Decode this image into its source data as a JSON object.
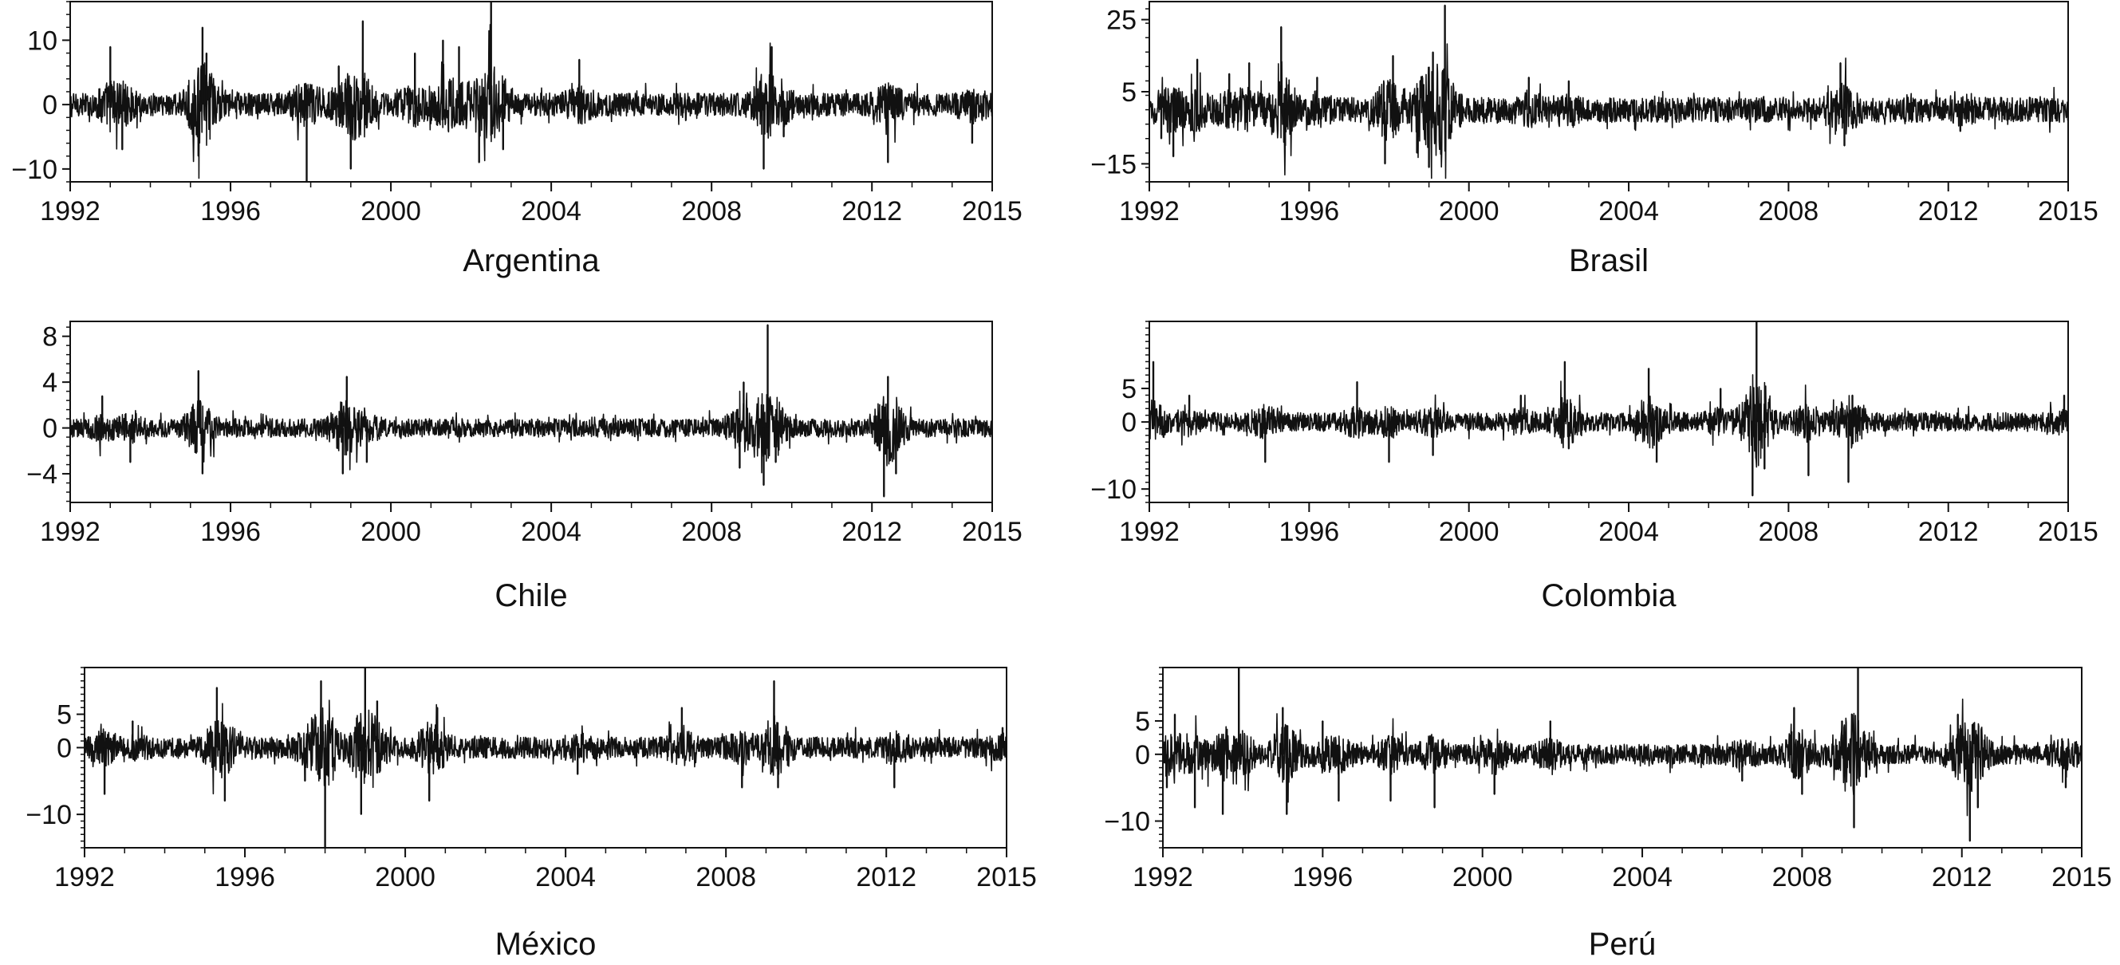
{
  "chart_data": [
    {
      "type": "line",
      "title": "Argentina",
      "xlim": [
        1992,
        2015
      ],
      "xticks": [
        1992,
        1996,
        2000,
        2004,
        2008,
        2012,
        2015
      ],
      "ylim": [
        -12,
        16
      ],
      "yticks": [
        10,
        0,
        -10
      ],
      "color": "#111111",
      "spikes": [
        [
          1993.0,
          9
        ],
        [
          1993.3,
          -7
        ],
        [
          1995.2,
          -8
        ],
        [
          1995.3,
          12
        ],
        [
          1995.4,
          8
        ],
        [
          1997.9,
          -12
        ],
        [
          1998.7,
          6
        ],
        [
          1999.0,
          -10
        ],
        [
          1999.3,
          13
        ],
        [
          2000.6,
          8
        ],
        [
          2001.3,
          10
        ],
        [
          2001.7,
          9
        ],
        [
          2002.2,
          -9
        ],
        [
          2002.5,
          16
        ],
        [
          2002.8,
          -7
        ],
        [
          2004.7,
          7
        ],
        [
          2009.3,
          -10
        ],
        [
          2009.5,
          9
        ],
        [
          2009.8,
          -5
        ],
        [
          2012.4,
          -9
        ],
        [
          2014.5,
          -6
        ]
      ],
      "noise": 1.8
    },
    {
      "type": "line",
      "title": "Brasil",
      "xlim": [
        1992,
        2015
      ],
      "xticks": [
        1992,
        1996,
        2000,
        2004,
        2008,
        2012,
        2015
      ],
      "ylim": [
        -20,
        30
      ],
      "yticks": [
        25,
        5,
        -15
      ],
      "color": "#111111",
      "spikes": [
        [
          1992.3,
          -8
        ],
        [
          1992.6,
          -13
        ],
        [
          1993.2,
          14
        ],
        [
          1994.0,
          10
        ],
        [
          1994.5,
          13
        ],
        [
          1995.3,
          23
        ],
        [
          1995.4,
          -10
        ],
        [
          1996.2,
          9
        ],
        [
          1997.9,
          -15
        ],
        [
          1998.1,
          15
        ],
        [
          1998.7,
          -12
        ],
        [
          1999.0,
          -16
        ],
        [
          1999.1,
          16
        ],
        [
          1999.4,
          29
        ],
        [
          1999.5,
          -8
        ],
        [
          2001.5,
          9
        ],
        [
          2002.5,
          8
        ],
        [
          2009.3,
          13
        ],
        [
          2009.4,
          -10
        ],
        [
          2012.3,
          -6
        ]
      ],
      "noise": 3.5
    },
    {
      "type": "line",
      "title": "Chile",
      "xlim": [
        1992,
        2015
      ],
      "xticks": [
        1992,
        1996,
        2000,
        2004,
        2008,
        2012,
        2015
      ],
      "ylim": [
        -6.5,
        9.3
      ],
      "yticks": [
        8,
        4,
        0,
        -4
      ],
      "color": "#111111",
      "spikes": [
        [
          1992.8,
          2.8
        ],
        [
          1993.5,
          -3
        ],
        [
          1995.2,
          5
        ],
        [
          1995.3,
          -4
        ],
        [
          1998.8,
          -4
        ],
        [
          1998.9,
          4.5
        ],
        [
          1999.4,
          -3
        ],
        [
          2008.7,
          -3.5
        ],
        [
          2008.8,
          4
        ],
        [
          2009.3,
          -5
        ],
        [
          2009.4,
          9
        ],
        [
          2009.6,
          -3
        ],
        [
          2012.3,
          -6
        ],
        [
          2012.4,
          4.5
        ],
        [
          2012.6,
          -4
        ]
      ],
      "noise": 0.8
    },
    {
      "type": "line",
      "title": "Colombia",
      "xlim": [
        1992,
        2015
      ],
      "xticks": [
        1992,
        1996,
        2000,
        2004,
        2008,
        2012,
        2015
      ],
      "ylim": [
        -12,
        15
      ],
      "yticks": [
        5,
        0,
        -10
      ],
      "color": "#111111",
      "spikes": [
        [
          1992.1,
          9
        ],
        [
          1993.0,
          4
        ],
        [
          1994.9,
          -6
        ],
        [
          1997.2,
          6
        ],
        [
          1998.0,
          -6
        ],
        [
          1999.1,
          -5
        ],
        [
          2001.3,
          4
        ],
        [
          2002.4,
          9
        ],
        [
          2002.5,
          -4
        ],
        [
          2004.5,
          8
        ],
        [
          2004.7,
          -6
        ],
        [
          2006.3,
          5
        ],
        [
          2007.1,
          -11
        ],
        [
          2007.2,
          15
        ],
        [
          2007.4,
          -7
        ],
        [
          2008.5,
          -8
        ],
        [
          2009.5,
          -9
        ],
        [
          2009.6,
          4
        ],
        [
          2014.9,
          4
        ]
      ],
      "noise": 1.4
    },
    {
      "type": "line",
      "title": "México",
      "xlim": [
        1992,
        2015
      ],
      "xticks": [
        1992,
        1996,
        2000,
        2004,
        2008,
        2012,
        2015
      ],
      "ylim": [
        -15,
        12
      ],
      "yticks": [
        5,
        0,
        -10
      ],
      "color": "#111111",
      "spikes": [
        [
          1992.5,
          -7
        ],
        [
          1993.2,
          4
        ],
        [
          1995.3,
          9
        ],
        [
          1995.5,
          -8
        ],
        [
          1997.5,
          -5
        ],
        [
          1997.9,
          10
        ],
        [
          1998.0,
          -15
        ],
        [
          1998.9,
          -10
        ],
        [
          1999.0,
          12
        ],
        [
          1999.3,
          7
        ],
        [
          2000.6,
          -8
        ],
        [
          2000.8,
          6
        ],
        [
          2004.3,
          -4
        ],
        [
          2006.9,
          6
        ],
        [
          2008.4,
          -6
        ],
        [
          2009.2,
          10
        ],
        [
          2009.3,
          -6
        ],
        [
          2012.2,
          -6
        ],
        [
          2014.9,
          3
        ]
      ],
      "noise": 1.6
    },
    {
      "type": "line",
      "title": "Perú",
      "xlim": [
        1992,
        2015
      ],
      "xticks": [
        1992,
        1996,
        2000,
        2004,
        2008,
        2012,
        2015
      ],
      "ylim": [
        -14,
        13
      ],
      "yticks": [
        5,
        0,
        -10
      ],
      "color": "#111111",
      "spikes": [
        [
          1992.1,
          -5
        ],
        [
          1992.3,
          6
        ],
        [
          1992.8,
          -8
        ],
        [
          1993.5,
          -9
        ],
        [
          1993.9,
          13
        ],
        [
          1995.0,
          7
        ],
        [
          1995.1,
          -9
        ],
        [
          1996.0,
          5
        ],
        [
          1996.4,
          -7
        ],
        [
          1997.7,
          -7
        ],
        [
          1998.8,
          -8
        ],
        [
          2000.3,
          -6
        ],
        [
          2001.7,
          5
        ],
        [
          2006.5,
          -4
        ],
        [
          2007.8,
          7
        ],
        [
          2008.0,
          -6
        ],
        [
          2009.0,
          5
        ],
        [
          2009.3,
          -11
        ],
        [
          2009.4,
          13
        ],
        [
          2011.9,
          6
        ],
        [
          2012.2,
          -13
        ],
        [
          2012.4,
          -8
        ],
        [
          2014.6,
          -5
        ]
      ],
      "noise": 1.5
    }
  ]
}
